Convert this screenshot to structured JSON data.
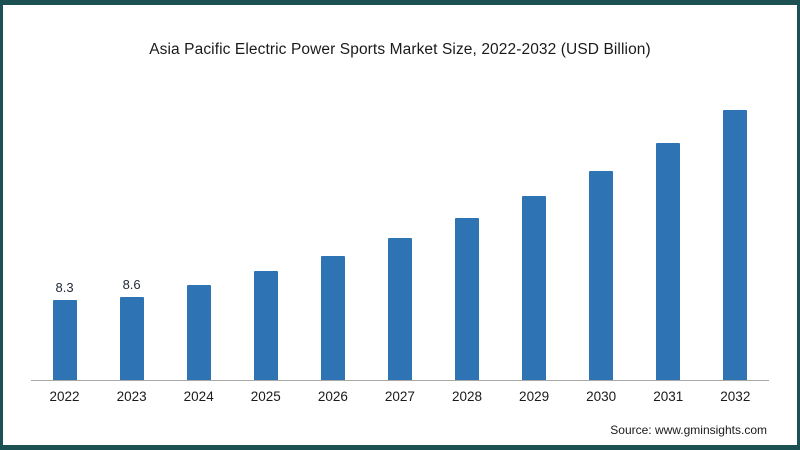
{
  "title": "Asia Pacific Electric Power Sports Market Size, 2022-2032 (USD Billion)",
  "source": "Source: www.gminsights.com",
  "colors": {
    "bar": "#2e74b5",
    "border": "#1b5152",
    "axis": "#a8a8a8"
  },
  "chart_data": {
    "type": "bar",
    "title": "Asia Pacific Electric Power Sports Market Size, 2022-2032 (USD Billion)",
    "categories": [
      "2022",
      "2023",
      "2024",
      "2025",
      "2026",
      "2027",
      "2028",
      "2029",
      "2030",
      "2031",
      "2032"
    ],
    "values": [
      8.3,
      8.6,
      9.9,
      11.3,
      12.9,
      14.7,
      16.8,
      19.1,
      21.7,
      24.6,
      28.0
    ],
    "data_labels": [
      "8.3",
      "8.6",
      null,
      null,
      null,
      null,
      null,
      null,
      null,
      null,
      null
    ],
    "xlabel": "",
    "ylabel": "USD Billion",
    "ylim": [
      0,
      30
    ],
    "grid": false,
    "legend": false,
    "bar_color": "#2e74b5"
  }
}
